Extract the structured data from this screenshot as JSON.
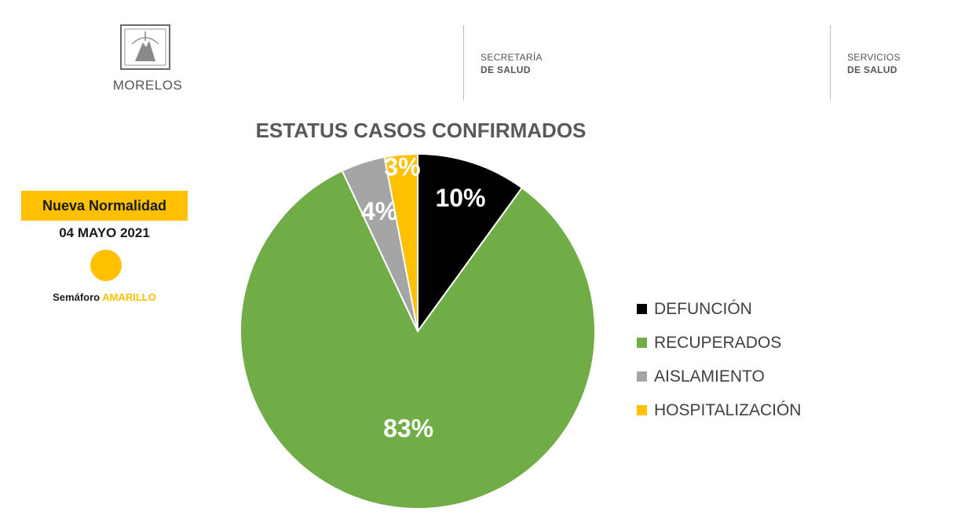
{
  "header": {
    "logo_text": "MOREL OS",
    "state_name": "MORELOS",
    "org1_line1": "SECRETARÍA",
    "org1_line2": "DE SALUD",
    "org2_line1": "SERVICIOS",
    "org2_line2": "DE SALUD"
  },
  "side_panel": {
    "badge": "Nueva Normalidad",
    "date": "04 MAYO 2021",
    "semaforo_prefix": "Semáforo ",
    "semaforo_color": "AMARILLO",
    "light_color": "#ffc000"
  },
  "chart_data": {
    "type": "pie",
    "title": "ESTATUS CASOS CONFIRMADOS",
    "legend_position": "right",
    "slices": [
      {
        "label": "DEFUNCIÓN",
        "value": 10,
        "display": "10%",
        "color": "#000000"
      },
      {
        "label": "RECUPERADOS",
        "value": 83,
        "display": "83%",
        "color": "#70ad47"
      },
      {
        "label": "AISLAMIENTO",
        "value": 4,
        "display": "4%",
        "color": "#a5a5a5"
      },
      {
        "label": "HOSPITALIZACIÓN",
        "value": 3,
        "display": "3%",
        "color": "#ffc000"
      }
    ]
  }
}
